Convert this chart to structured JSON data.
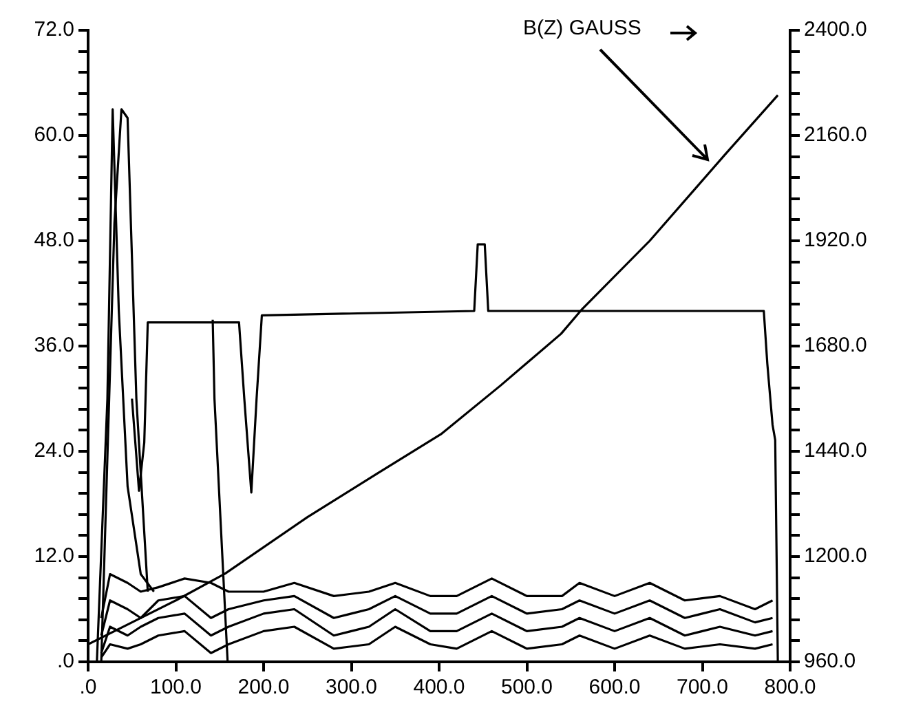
{
  "chart_data": {
    "type": "line",
    "marker": "none",
    "line_style": "solid",
    "xlim": [
      0,
      800
    ],
    "xticks": [
      {
        "value": 0,
        "label": ".0"
      },
      {
        "value": 100,
        "label": "100.0"
      },
      {
        "value": 200,
        "label": "200.0"
      },
      {
        "value": 300,
        "label": "300.0"
      },
      {
        "value": 400,
        "label": "400.0"
      },
      {
        "value": 500,
        "label": "500.0"
      },
      {
        "value": 600,
        "label": "600.0"
      },
      {
        "value": 700,
        "label": "700.0"
      },
      {
        "value": 800,
        "label": "800.0"
      }
    ],
    "ylim": [
      0,
      72
    ],
    "yticks": [
      {
        "value": 0,
        "label": ".0"
      },
      {
        "value": 2.4,
        "label": null
      },
      {
        "value": 4.8,
        "label": null
      },
      {
        "value": 7.2,
        "label": null
      },
      {
        "value": 9.6,
        "label": null
      },
      {
        "value": 12,
        "label": "12.0"
      },
      {
        "value": 14.4,
        "label": null
      },
      {
        "value": 16.8,
        "label": null
      },
      {
        "value": 19.2,
        "label": null
      },
      {
        "value": 21.6,
        "label": null
      },
      {
        "value": 24,
        "label": "24.0"
      },
      {
        "value": 26.4,
        "label": null
      },
      {
        "value": 28.8,
        "label": null
      },
      {
        "value": 31.2,
        "label": null
      },
      {
        "value": 33.6,
        "label": null
      },
      {
        "value": 36,
        "label": "36.0"
      },
      {
        "value": 38.4,
        "label": null
      },
      {
        "value": 40.8,
        "label": null
      },
      {
        "value": 43.2,
        "label": null
      },
      {
        "value": 45.6,
        "label": null
      },
      {
        "value": 48,
        "label": "48.0"
      },
      {
        "value": 50.4,
        "label": null
      },
      {
        "value": 52.8,
        "label": null
      },
      {
        "value": 55.2,
        "label": null
      },
      {
        "value": 57.6,
        "label": null
      },
      {
        "value": 60,
        "label": "60.0"
      },
      {
        "value": 62.4,
        "label": null
      },
      {
        "value": 64.8,
        "label": null
      },
      {
        "value": 67.2,
        "label": null
      },
      {
        "value": 69.6,
        "label": null
      },
      {
        "value": 72,
        "label": "72.0"
      }
    ],
    "y2lim": [
      960,
      2400
    ],
    "y2ticks": [
      {
        "value": 960,
        "label": "960.0"
      },
      {
        "value": 1008,
        "label": null
      },
      {
        "value": 1056,
        "label": null
      },
      {
        "value": 1104,
        "label": null
      },
      {
        "value": 1152,
        "label": null
      },
      {
        "value": 1200,
        "label": "1200.0"
      },
      {
        "value": 1248,
        "label": null
      },
      {
        "value": 1296,
        "label": null
      },
      {
        "value": 1344,
        "label": null
      },
      {
        "value": 1392,
        "label": null
      },
      {
        "value": 1440,
        "label": "1440.0"
      },
      {
        "value": 1488,
        "label": null
      },
      {
        "value": 1536,
        "label": null
      },
      {
        "value": 1584,
        "label": null
      },
      {
        "value": 1632,
        "label": null
      },
      {
        "value": 1680,
        "label": "1680.0"
      },
      {
        "value": 1728,
        "label": null
      },
      {
        "value": 1776,
        "label": null
      },
      {
        "value": 1824,
        "label": null
      },
      {
        "value": 1872,
        "label": null
      },
      {
        "value": 1920,
        "label": "1920.0"
      },
      {
        "value": 1968,
        "label": null
      },
      {
        "value": 2016,
        "label": null
      },
      {
        "value": 2064,
        "label": null
      },
      {
        "value": 2112,
        "label": null
      },
      {
        "value": 2160,
        "label": "2160.0"
      },
      {
        "value": 2208,
        "label": null
      },
      {
        "value": 2256,
        "label": null
      },
      {
        "value": 2304,
        "label": null
      },
      {
        "value": 2352,
        "label": null
      },
      {
        "value": 2400,
        "label": "2400.0"
      }
    ],
    "annotations": [
      "B(Z) GAUSS"
    ],
    "series": [
      {
        "color": "#000000",
        "axis": "y2",
        "x": [
          0,
          50,
          100,
          156,
          250,
          330,
          402,
          470,
          539,
          562,
          640,
          726,
          786
        ],
        "values": [
          1000,
          1050,
          1100,
          1161,
          1290,
          1390,
          1479,
          1590,
          1708,
          1762,
          1920,
          2117,
          2252
        ]
      },
      {
        "color": "#000000",
        "x": [
          50,
          58,
          64,
          68,
          110,
          172,
          178,
          186,
          192,
          198,
          440,
          444,
          448,
          452,
          456,
          770,
          774,
          780,
          783,
          786
        ],
        "values": [
          30,
          19.5,
          25,
          38.7,
          38.7,
          38.7,
          30,
          19.3,
          30,
          39.5,
          40,
          47.6,
          47.6,
          47.6,
          40,
          40,
          34,
          27,
          25.3,
          0
        ]
      },
      {
        "color": "#000000",
        "x": [
          10,
          22,
          28,
          35,
          45,
          60,
          75
        ],
        "values": [
          0,
          30,
          63,
          40,
          20,
          10,
          8
        ]
      },
      {
        "color": "#000000",
        "x": [
          15,
          30,
          38,
          45,
          55,
          68
        ],
        "values": [
          0,
          50,
          63,
          62,
          30,
          8
        ]
      },
      {
        "color": "#000000",
        "x": [
          142,
          144,
          159
        ],
        "values": [
          39,
          30,
          0
        ]
      },
      {
        "color": "#000000",
        "x": [
          15,
          25,
          45,
          60,
          80,
          110,
          140,
          160,
          200,
          235,
          280,
          320,
          350,
          390,
          420,
          460,
          500,
          540,
          560,
          600,
          640,
          680,
          720,
          760,
          780
        ],
        "values": [
          5,
          10,
          9,
          8,
          8.5,
          9.5,
          9,
          8,
          8,
          9,
          7.5,
          8,
          9,
          7.5,
          7.5,
          9.5,
          7.5,
          7.5,
          9,
          7.5,
          9,
          7,
          7.5,
          6,
          7
        ]
      },
      {
        "color": "#000000",
        "x": [
          15,
          25,
          45,
          60,
          80,
          110,
          140,
          160,
          200,
          235,
          280,
          320,
          350,
          390,
          420,
          460,
          500,
          540,
          560,
          600,
          640,
          680,
          720,
          760,
          780
        ],
        "values": [
          3,
          7,
          6,
          5,
          7,
          7.5,
          5,
          6,
          7,
          7.5,
          5,
          6,
          7.5,
          5.5,
          5.5,
          7.5,
          5.5,
          6,
          7,
          5.5,
          7,
          5,
          6,
          4.5,
          5
        ]
      },
      {
        "color": "#000000",
        "x": [
          15,
          25,
          45,
          60,
          80,
          110,
          140,
          160,
          200,
          235,
          280,
          320,
          350,
          390,
          420,
          460,
          500,
          540,
          560,
          600,
          640,
          680,
          720,
          760,
          780
        ],
        "values": [
          1,
          4,
          3,
          4,
          5,
          5.5,
          3,
          4,
          5.5,
          6,
          3,
          4,
          6,
          3.5,
          3.5,
          5.5,
          3.5,
          4,
          5,
          3.5,
          5,
          3,
          4,
          3,
          3.5
        ]
      },
      {
        "color": "#000000",
        "x": [
          15,
          25,
          45,
          60,
          80,
          110,
          140,
          160,
          200,
          235,
          280,
          320,
          350,
          390,
          420,
          460,
          500,
          540,
          560,
          600,
          640,
          680,
          720,
          760,
          780
        ],
        "values": [
          0.5,
          2,
          1.5,
          2,
          3,
          3.5,
          1,
          2,
          3.5,
          4,
          1.5,
          2,
          4,
          2,
          1.5,
          3.5,
          1.5,
          2,
          3,
          1.5,
          3,
          1.5,
          2,
          1.5,
          2
        ]
      }
    ]
  }
}
